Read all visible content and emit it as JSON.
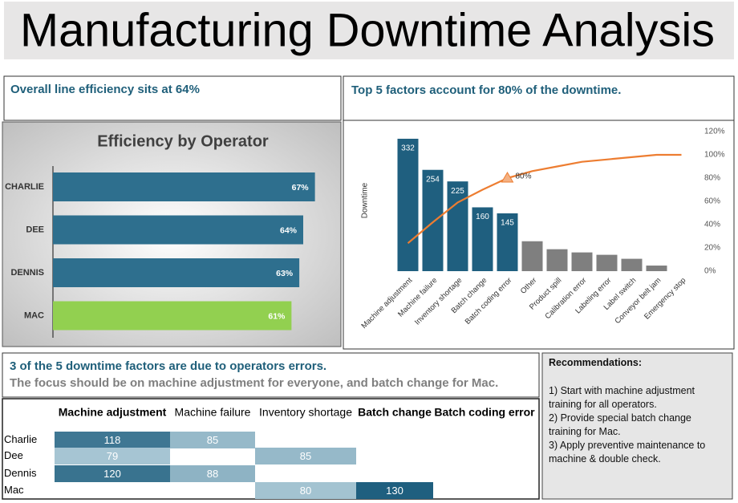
{
  "header": {
    "title": "Manufacturing Downtime Analysis"
  },
  "efficiency_note": "Overall line efficiency sits at 64%",
  "pareto_note": "Top 5 factors account for 80% of the downtime.",
  "chart_data": [
    {
      "type": "hbar",
      "title": "Efficiency by Operator",
      "categories": [
        "CHARLIE",
        "DEE",
        "DENNIS",
        "MAC"
      ],
      "values": [
        67,
        64,
        63,
        61
      ],
      "value_labels": [
        "67%",
        "64%",
        "63%",
        "61%"
      ],
      "colors": [
        "#2e6f8e",
        "#2e6f8e",
        "#2e6f8e",
        "#92d050"
      ],
      "xlim": [
        0,
        72
      ]
    },
    {
      "type": "pareto",
      "y_label": "Downtime",
      "categories": [
        "Machine adjustment",
        "Machine failure",
        "Inventory shortage",
        "Batch change",
        "Batch coding error",
        "Other",
        "Product spill",
        "Calibration error",
        "Labeling error",
        "Label switch",
        "Conveyor belt jam",
        "Emergency stop"
      ],
      "bars": {
        "values": [
          332,
          254,
          225,
          160,
          145,
          75,
          55,
          47,
          41,
          31,
          14,
          0
        ],
        "value_labels": [
          "332",
          "254",
          "225",
          "160",
          "145",
          null,
          null,
          null,
          null,
          null,
          null,
          null
        ],
        "colors": [
          "#1f5f7f",
          "#1f5f7f",
          "#1f5f7f",
          "#1f5f7f",
          "#1f5f7f",
          "#7f7f7f",
          "#7f7f7f",
          "#7f7f7f",
          "#7f7f7f",
          "#7f7f7f",
          "#7f7f7f",
          "#7f7f7f"
        ]
      },
      "line": {
        "axis": "y2",
        "color": "#ed7d31",
        "values": [
          24,
          42,
          59,
          70,
          80,
          86,
          90,
          94,
          96,
          98,
          100,
          100
        ],
        "value_labels": [
          null,
          null,
          null,
          null,
          "80%",
          null,
          null,
          null,
          null,
          null,
          null,
          null
        ]
      },
      "ylim": [
        0,
        350
      ],
      "y2lim": [
        0,
        120
      ],
      "y2ticks": [
        {
          "value": 0,
          "label": "0%"
        },
        {
          "value": 20,
          "label": "20%"
        },
        {
          "value": 40,
          "label": "40%"
        },
        {
          "value": 60,
          "label": "60%"
        },
        {
          "value": 80,
          "label": "80%"
        },
        {
          "value": 100,
          "label": "100%"
        },
        {
          "value": 120,
          "label": "120%"
        }
      ]
    }
  ],
  "table": {
    "caption": [
      "3 of the 5 downtime factors are due to operators errors.",
      "The focus should be on machine adjustment for everyone, and batch change for Mac."
    ],
    "columns": [
      {
        "text": "Machine adjustment",
        "bold": true
      },
      {
        "text": "Machine failure",
        "bold": false
      },
      {
        "text": "Inventory shortage",
        "bold": false
      },
      {
        "text": "Batch change",
        "bold": true
      },
      {
        "text": "Batch coding error",
        "bold": true
      }
    ],
    "rows": [
      {
        "name": "Charlie",
        "values": [
          118,
          85,
          null,
          null,
          null
        ]
      },
      {
        "name": "Dee",
        "values": [
          79,
          null,
          85,
          null,
          null
        ]
      },
      {
        "name": "Dennis",
        "values": [
          120,
          88,
          null,
          null,
          null
        ]
      },
      {
        "name": "Mac",
        "values": [
          null,
          null,
          80,
          130,
          null
        ]
      }
    ]
  },
  "recommendations": {
    "title": "Recommendations:",
    "items": [
      "1) Start with machine adjustment training for all operators.",
      "2) Provide special batch change training for Mac.",
      "3) Apply preventive maintenance  to machine & double check."
    ]
  }
}
